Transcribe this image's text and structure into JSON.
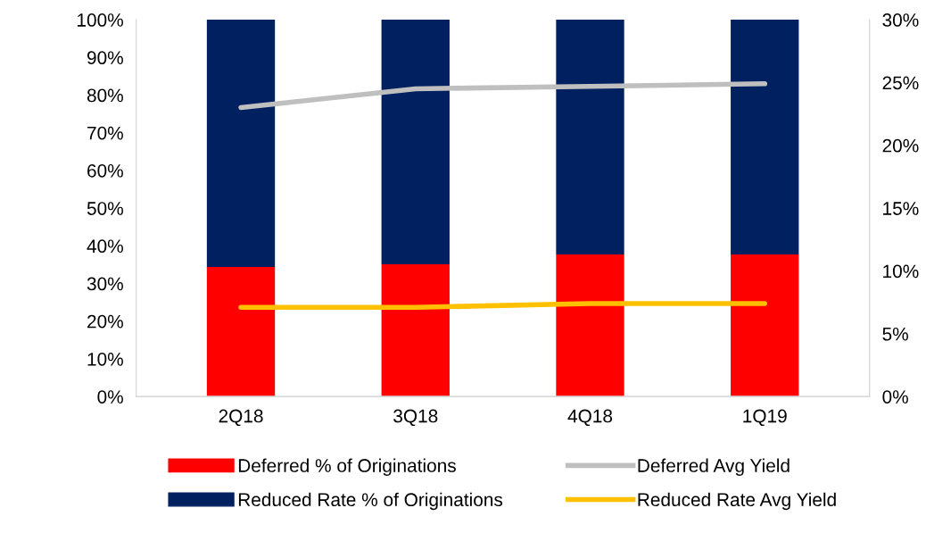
{
  "chart_data": {
    "type": "bar",
    "stacked": true,
    "categories": [
      "2Q18",
      "3Q18",
      "4Q18",
      "1Q19"
    ],
    "series": [
      {
        "name": "Deferred % of Originations",
        "color": "#ff0000",
        "values": [
          34.4,
          35.1,
          37.7,
          37.7
        ]
      },
      {
        "name": "Reduced Rate % of Originations",
        "color": "#002060",
        "values": [
          65.6,
          64.9,
          62.3,
          62.3
        ]
      },
      {
        "name": "Deferred Avg Yield",
        "type": "line",
        "axis": "y2",
        "color": "#bfbfbf",
        "values": [
          23.0,
          24.5,
          24.7,
          24.9
        ]
      },
      {
        "name": "Reduced Rate Avg Yield",
        "type": "line",
        "axis": "y2",
        "color": "#ffc000",
        "values": [
          7.1,
          7.1,
          7.4,
          7.4
        ]
      }
    ],
    "ylim": [
      0,
      100
    ],
    "yticks": [
      {
        "value": 0,
        "label": "0%"
      },
      {
        "value": 10,
        "label": "10%"
      },
      {
        "value": 20,
        "label": "20%"
      },
      {
        "value": 30,
        "label": "30%"
      },
      {
        "value": 40,
        "label": "40%"
      },
      {
        "value": 50,
        "label": "50%"
      },
      {
        "value": 60,
        "label": "60%"
      },
      {
        "value": 70,
        "label": "70%"
      },
      {
        "value": 80,
        "label": "80%"
      },
      {
        "value": 90,
        "label": "90%"
      },
      {
        "value": 100,
        "label": "100%"
      }
    ],
    "y2lim": [
      0,
      30
    ],
    "y2ticks": [
      {
        "value": 0,
        "label": "0%"
      },
      {
        "value": 5,
        "label": "5%"
      },
      {
        "value": 10,
        "label": "10%"
      },
      {
        "value": 15,
        "label": "15%"
      },
      {
        "value": 20,
        "label": "20%"
      },
      {
        "value": 25,
        "label": "25%"
      },
      {
        "value": 30,
        "label": "30%"
      }
    ],
    "grid": false,
    "legend": "bottom",
    "marker": "none",
    "line_style": "solid"
  }
}
